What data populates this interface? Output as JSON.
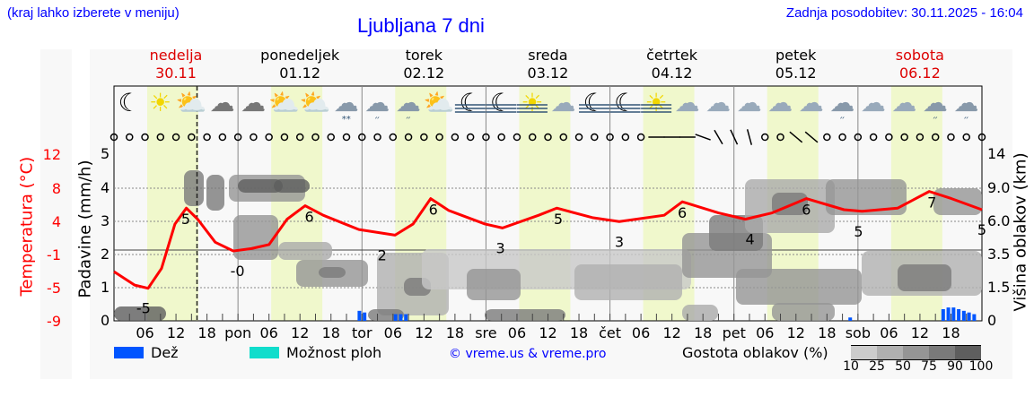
{
  "header": {
    "hint": "(kraj lahko izberete v meniju)",
    "title": "Ljubljana 7 dni",
    "updated": "Zadnja posodobitev: 30.11.2025 - 16:04"
  },
  "days": [
    {
      "name": "nedelja",
      "date": "30.11",
      "color": "#dd0000"
    },
    {
      "name": "ponedeljek",
      "date": "01.12",
      "color": "#000000"
    },
    {
      "name": "torek",
      "date": "02.12",
      "color": "#000000"
    },
    {
      "name": "sreda",
      "date": "03.12",
      "color": "#000000"
    },
    {
      "name": "četrtek",
      "date": "04.12",
      "color": "#000000"
    },
    {
      "name": "petek",
      "date": "05.12",
      "color": "#000000"
    },
    {
      "name": "sobota",
      "date": "06.12",
      "color": "#dd0000"
    }
  ],
  "icons": [
    "moon",
    "sun",
    "sun-cloud",
    "moon-cloud",
    "moon-cloud",
    "sun-cloud",
    "sun-cloud",
    "cloud-snow",
    "cloud-rain",
    "cloud-rain",
    "sun-cloud",
    "moon-fog",
    "moon-fog",
    "sun-fog",
    "cloud",
    "moon-fog",
    "moon-fog",
    "sun-fog",
    "cloud",
    "cloud",
    "cloud",
    "cloud",
    "cloud",
    "cloud-rain",
    "cloud",
    "cloud",
    "cloud-rain",
    "cloud-rain"
  ],
  "wind_dir_deg": [
    0,
    0,
    0,
    0,
    0,
    0,
    0,
    0,
    0,
    0,
    0,
    0,
    0,
    0,
    0,
    0,
    0,
    0,
    0,
    0,
    0,
    0,
    0,
    0,
    0,
    0,
    0,
    0,
    0,
    0,
    0,
    0,
    0,
    0,
    0,
    90,
    90,
    90,
    70,
    30,
    25,
    15,
    0,
    0,
    50,
    50,
    0,
    0,
    0,
    0,
    0,
    0,
    0,
    0,
    0,
    0,
    0
  ],
  "chart_data": {
    "type": "line",
    "x_unit": "hours from 30.11 00:00",
    "xlim": [
      0,
      168
    ],
    "x_tick_labels": [
      "06",
      "12",
      "18",
      "pon",
      "06",
      "12",
      "18",
      "tor",
      "06",
      "12",
      "18",
      "sre",
      "06",
      "12",
      "18",
      "čet",
      "06",
      "12",
      "18",
      "pet",
      "06",
      "12",
      "18",
      "sob",
      "06",
      "12",
      "18"
    ],
    "now_marker": "30.11 16:04",
    "axes": {
      "temperature": {
        "label": "Temperatura (°C)",
        "ticks": [
          "12",
          "8",
          "4",
          "-1",
          "-5",
          "-9"
        ],
        "ylim": [
          -9,
          12
        ],
        "color": "#ff0000"
      },
      "precipitation": {
        "label": "Padavine (mm/h)",
        "ticks": [
          "5",
          "4",
          "3",
          "2",
          "1",
          "0"
        ],
        "ylim": [
          0,
          5
        ]
      },
      "cloud_height": {
        "label": "Višina oblakov (km)",
        "ticks": [
          "14",
          "9.0",
          "6.0",
          "3.5",
          "1.5",
          "0"
        ]
      }
    },
    "temperature": [
      [
        0,
        -2.8
      ],
      [
        4,
        -4.5
      ],
      [
        6.6,
        -4.9
      ],
      [
        9.2,
        -2.4
      ],
      [
        11.8,
        3.2
      ],
      [
        14,
        5.2
      ],
      [
        16.2,
        3.8
      ],
      [
        19.6,
        0.9
      ],
      [
        23.1,
        -0.2
      ],
      [
        26.6,
        0.1
      ],
      [
        30,
        0.6
      ],
      [
        33.5,
        3.8
      ],
      [
        37,
        5.5
      ],
      [
        40.5,
        4.3
      ],
      [
        47.4,
        2.5
      ],
      [
        54.4,
        1.8
      ],
      [
        57.9,
        3.2
      ],
      [
        61.3,
        6.4
      ],
      [
        64.8,
        4.9
      ],
      [
        71.8,
        3.2
      ],
      [
        75.2,
        2.7
      ],
      [
        82.2,
        4.3
      ],
      [
        85.7,
        5.2
      ],
      [
        92.6,
        4.0
      ],
      [
        97.8,
        3.5
      ],
      [
        106.5,
        4.3
      ],
      [
        110,
        6.0
      ],
      [
        117,
        4.6
      ],
      [
        122.2,
        3.8
      ],
      [
        127.4,
        4.6
      ],
      [
        134,
        6.4
      ],
      [
        141.3,
        5.0
      ],
      [
        144.8,
        4.8
      ],
      [
        151.7,
        5.2
      ],
      [
        157.8,
        7.3
      ],
      [
        162.1,
        6.4
      ],
      [
        168,
        5.0
      ]
    ],
    "temp_labels": [
      [
        5.7,
        "-5"
      ],
      [
        13.9,
        "5"
      ],
      [
        23.9,
        "-0"
      ],
      [
        37.8,
        "6"
      ],
      [
        51.9,
        "2"
      ],
      [
        61.8,
        "6"
      ],
      [
        74.8,
        "3"
      ],
      [
        86,
        "5"
      ],
      [
        97.8,
        "3"
      ],
      [
        110,
        "6"
      ],
      [
        123.1,
        "4"
      ],
      [
        134,
        "6"
      ],
      [
        144.1,
        "5"
      ],
      [
        158.3,
        "7"
      ],
      [
        168,
        "5"
      ]
    ],
    "precipitation_mm_h": [
      [
        47.5,
        0.3
      ],
      [
        48.5,
        0.25
      ],
      [
        54.5,
        0.2
      ],
      [
        55.5,
        0.2
      ],
      [
        56.5,
        0.2
      ],
      [
        142.5,
        0.1
      ],
      [
        160.5,
        0.35
      ],
      [
        161.5,
        0.4
      ],
      [
        162.5,
        0.4
      ],
      [
        163.5,
        0.35
      ],
      [
        164.5,
        0.3
      ],
      [
        165.5,
        0.25
      ],
      [
        166.5,
        0.2
      ]
    ],
    "legend": {
      "rain": "Dež",
      "rain_color": "#0055ff",
      "showers": "Možnost ploh",
      "showers_color": "#11ddcc",
      "credit": "© vreme.us & vreme.pro",
      "cloud_density": "Gostota oblakov (%)",
      "density_levels": [
        "10",
        "25",
        "50",
        "75",
        "90",
        "100"
      ],
      "density_colors": [
        "#cccccc",
        "#b0b0b0",
        "#959595",
        "#7a7a7a",
        "#5e5e5e"
      ]
    }
  }
}
